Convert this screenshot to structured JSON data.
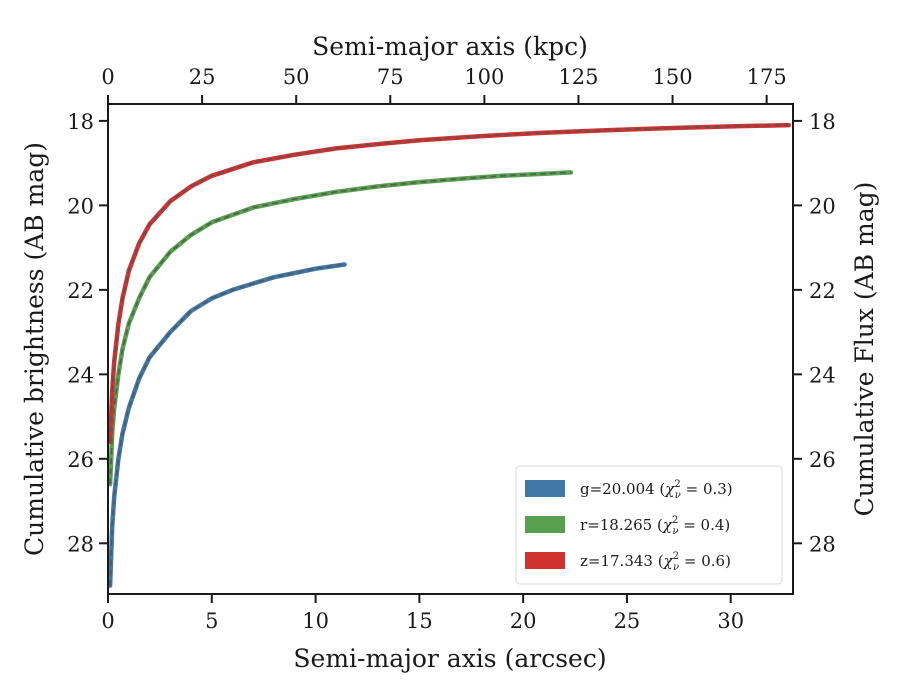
{
  "chart_data": {
    "type": "line",
    "title": "",
    "xlabel": "Semi-major axis (arcsec)",
    "xlabel_top": "Semi-major axis (kpc)",
    "ylabel": "Cumulative brightness (AB mag)",
    "ylabel_right": "Cumulative Flux (AB mag)",
    "xlim": [
      0,
      33
    ],
    "xlim_top": [
      0,
      182
    ],
    "ylim": [
      29.2,
      17.6
    ],
    "y_inverted": true,
    "grid": false,
    "legend_position": "lower-right",
    "x_ticks": [
      0,
      5,
      10,
      15,
      20,
      25,
      30
    ],
    "x_ticks_top": [
      0,
      25,
      50,
      75,
      100,
      125,
      150,
      175
    ],
    "y_ticks": [
      18,
      20,
      22,
      24,
      26,
      28
    ],
    "series": [
      {
        "name": "g=20.004",
        "band": "g",
        "mag": "20.004",
        "chi2": "0.3",
        "color": "#3f77a6",
        "x": [
          0.1,
          0.2,
          0.3,
          0.5,
          0.7,
          1.0,
          1.5,
          2.0,
          3.0,
          4.0,
          5.0,
          6.0,
          7.0,
          8.0,
          9.0,
          10.0,
          11.4
        ],
        "y": [
          29.0,
          27.6,
          26.9,
          26.0,
          25.4,
          24.8,
          24.1,
          23.6,
          23.0,
          22.5,
          22.2,
          22.0,
          21.85,
          21.7,
          21.6,
          21.5,
          21.4
        ]
      },
      {
        "name": "r=18.265",
        "band": "r",
        "mag": "18.265",
        "chi2": "0.4",
        "color": "#56a04e",
        "x": [
          0.1,
          0.2,
          0.3,
          0.5,
          0.7,
          1.0,
          1.5,
          2.0,
          3.0,
          4.0,
          5.0,
          7.0,
          9.0,
          11.0,
          13.0,
          15.0,
          17.0,
          19.0,
          21.0,
          22.3
        ],
        "y": [
          26.6,
          25.4,
          24.8,
          24.0,
          23.4,
          22.8,
          22.2,
          21.7,
          21.1,
          20.7,
          20.4,
          20.05,
          19.85,
          19.68,
          19.55,
          19.45,
          19.37,
          19.3,
          19.25,
          19.22
        ]
      },
      {
        "name": "z=17.343",
        "band": "z",
        "mag": "17.343",
        "chi2": "0.6",
        "color": "#d1312f",
        "x": [
          0.1,
          0.2,
          0.3,
          0.5,
          0.7,
          1.0,
          1.5,
          2.0,
          3.0,
          4.0,
          5.0,
          7.0,
          9.0,
          11.0,
          13.0,
          15.0,
          18.0,
          21.0,
          24.0,
          27.0,
          30.0,
          32.8
        ],
        "y": [
          25.6,
          24.4,
          23.7,
          22.8,
          22.2,
          21.55,
          20.9,
          20.45,
          19.9,
          19.55,
          19.3,
          18.98,
          18.8,
          18.65,
          18.55,
          18.46,
          18.36,
          18.28,
          18.22,
          18.17,
          18.13,
          18.1
        ]
      }
    ]
  }
}
